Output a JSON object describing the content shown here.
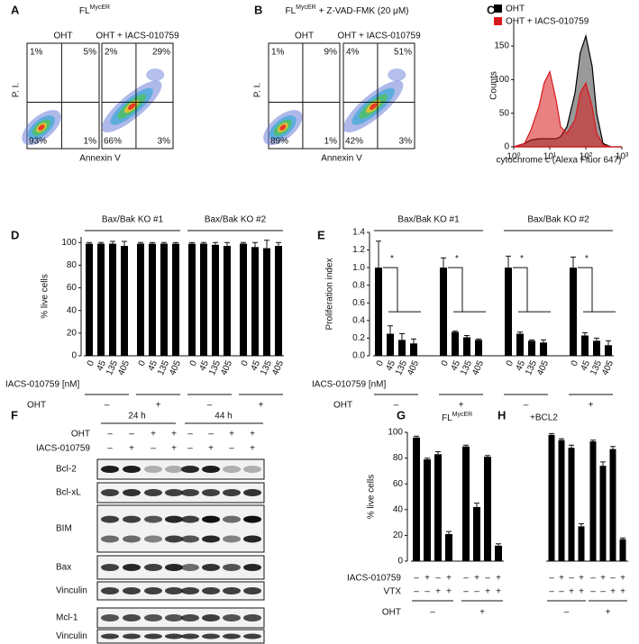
{
  "panels": {
    "A": {
      "letter": "A",
      "title": "FL",
      "title_sup": "MycER",
      "y_label": "P. I.",
      "x_label": "Annexin V",
      "plots": [
        {
          "label": "OHT",
          "quadrants": [
            "1%",
            "5%",
            "93%",
            "1%"
          ]
        },
        {
          "label": "OHT + IACS-010759",
          "quadrants": [
            "2%",
            "29%",
            "66%",
            "3%"
          ]
        }
      ]
    },
    "B": {
      "letter": "B",
      "title": "FL",
      "title_sup": "MycER",
      "title_rest": "+ Z-VAD-FMK (20 μM)",
      "y_label": "P. I.",
      "x_label": "Annexin V",
      "plots": [
        {
          "label": "OHT",
          "quadrants": [
            "1%",
            "9%",
            "89%",
            "1%"
          ]
        },
        {
          "label": "OHT + IACS-010759",
          "quadrants": [
            "4%",
            "51%",
            "42%",
            "3%"
          ]
        }
      ]
    },
    "F": {
      "letter": "F",
      "times": [
        "24 h",
        "44 h"
      ],
      "row_labels": [
        "OHT",
        "IACS-010759"
      ],
      "oht": [
        "–",
        "–",
        "+",
        "+",
        "–",
        "–",
        "+",
        "+"
      ],
      "iacs": [
        "–",
        "+",
        "–",
        "+",
        "–",
        "+",
        "–",
        "+"
      ],
      "bands": [
        "Bcl-2",
        "Bcl-xL",
        "BIM",
        "Bax",
        "Vinculin",
        "Mcl-1",
        "Vinculin"
      ]
    }
  },
  "chart_data": [
    {
      "panel": "C",
      "type": "line",
      "xlabel": "cytochrome c (Alexa Fluor 647)",
      "ylabel": "Counts",
      "log_x": true,
      "x": [
        1,
        2,
        3,
        5,
        7,
        10,
        15,
        20,
        30,
        50,
        70,
        100,
        150,
        200,
        300,
        500,
        1000
      ],
      "series": [
        {
          "name": "OHT",
          "color": "#000000",
          "values": [
            0,
            5,
            10,
            12,
            12,
            12,
            12,
            15,
            30,
            80,
            140,
            165,
            120,
            50,
            5,
            0,
            0
          ]
        },
        {
          "name": "OHT + IACS-010759",
          "color": "#d7191c",
          "values": [
            0,
            5,
            25,
            60,
            95,
            112,
            70,
            30,
            20,
            40,
            80,
            95,
            60,
            20,
            3,
            0,
            0
          ]
        }
      ],
      "xlim": [
        1,
        1000
      ],
      "xticks": [
        {
          "value": 1,
          "label": "10⁰"
        },
        {
          "value": 10,
          "label": "10¹"
        },
        {
          "value": 100,
          "label": "10²"
        },
        {
          "value": 1000,
          "label": "10³"
        }
      ],
      "ylim": [
        0,
        185
      ],
      "yticks": [
        0,
        50,
        100,
        150
      ]
    },
    {
      "panel": "D",
      "type": "bar",
      "ylabel": "% live cells",
      "xlabel": "IACS-010759 [nM]",
      "color": "#000000",
      "groups": [
        "Bax/Bak KO #1",
        "Bax/Bak KO #2"
      ],
      "row_label": "OHT",
      "row_signs": [
        "–",
        "+",
        "–",
        "+"
      ],
      "categories": [
        "0",
        "45",
        "135",
        "405",
        "0",
        "45",
        "135",
        "405",
        "0",
        "45",
        "135",
        "405",
        "0",
        "45",
        "135",
        "405"
      ],
      "values": [
        99,
        99,
        99,
        97,
        99,
        99,
        99,
        99,
        99,
        99,
        98,
        97,
        99,
        96,
        95,
        97
      ],
      "errors": [
        1,
        1,
        2,
        4,
        1,
        1,
        1,
        1,
        1,
        1,
        2,
        3,
        1,
        4,
        7,
        3
      ],
      "ylim": [
        0,
        105
      ],
      "yticks": [
        0,
        20,
        40,
        60,
        80,
        100
      ]
    },
    {
      "panel": "E",
      "type": "bar",
      "ylabel": "Proliferation index",
      "xlabel": "IACS-010759 [nM]",
      "color": "#000000",
      "groups": [
        "Bax/Bak KO #1",
        "Bax/Bak KO #2"
      ],
      "row_label": "OHT",
      "row_signs": [
        "–",
        "+",
        "–",
        "+"
      ],
      "annotations": [
        "*",
        "*",
        "*",
        "*"
      ],
      "categories": [
        "0",
        "45",
        "135",
        "405",
        "0",
        "45",
        "135",
        "405",
        "0",
        "45",
        "135",
        "405",
        "0",
        "45",
        "135",
        "405"
      ],
      "values": [
        1.0,
        0.25,
        0.18,
        0.14,
        1.0,
        0.27,
        0.21,
        0.18,
        1.0,
        0.25,
        0.17,
        0.15,
        1.0,
        0.23,
        0.17,
        0.12
      ],
      "errors": [
        0.3,
        0.09,
        0.07,
        0.05,
        0.11,
        0.01,
        0.02,
        0.01,
        0.13,
        0.02,
        0.01,
        0.03,
        0.12,
        0.03,
        0.03,
        0.05
      ],
      "ylim": [
        0,
        1.4
      ],
      "yticks": [
        {
          "value": 0,
          "label": "0.0"
        },
        {
          "value": 0.2,
          "label": "0.2"
        },
        {
          "value": 0.4,
          "label": "0.4"
        },
        {
          "value": 0.6,
          "label": "0.6"
        },
        {
          "value": 0.8,
          "label": "0.8"
        },
        {
          "value": 1.0,
          "label": "1.0"
        },
        {
          "value": 1.2,
          "label": "1.2"
        },
        {
          "value": 1.4,
          "label": "1.4"
        }
      ]
    },
    {
      "panel": "G",
      "type": "bar",
      "title": "FL",
      "title_sup": "MycER",
      "ylabel": "% live cells",
      "color": "#000000",
      "rows": [
        {
          "label": "IACS-010759",
          "signs": [
            "–",
            "+",
            "–",
            "+",
            "–",
            "+",
            "–",
            "+"
          ]
        },
        {
          "label": "VTX",
          "signs": [
            "–",
            "–",
            "+",
            "+",
            "–",
            "–",
            "+",
            "+"
          ]
        },
        {
          "label": "OHT",
          "signs": [
            "–",
            "+"
          ]
        }
      ],
      "values": [
        96,
        79,
        83,
        21,
        89,
        42,
        81,
        12
      ],
      "errors": [
        1,
        1,
        2,
        2,
        1,
        3,
        1,
        1.5
      ],
      "ylim": [
        0,
        100
      ],
      "yticks": [
        0,
        20,
        40,
        60,
        80,
        100
      ]
    },
    {
      "panel": "H",
      "type": "bar",
      "title": "+BCL2",
      "color": "#000000",
      "rows": [
        {
          "signs": [
            "–",
            "+",
            "–",
            "+",
            "–",
            "+",
            "–",
            "+"
          ]
        },
        {
          "signs": [
            "–",
            "–",
            "+",
            "+",
            "–",
            "–",
            "+",
            "+"
          ]
        },
        {
          "signs": [
            "–",
            "+"
          ]
        }
      ],
      "values": [
        98,
        94,
        88,
        27,
        93,
        74,
        87,
        17
      ],
      "errors": [
        1,
        1,
        2,
        2,
        1,
        3,
        2,
        1
      ],
      "ylim": [
        0,
        100
      ]
    }
  ]
}
